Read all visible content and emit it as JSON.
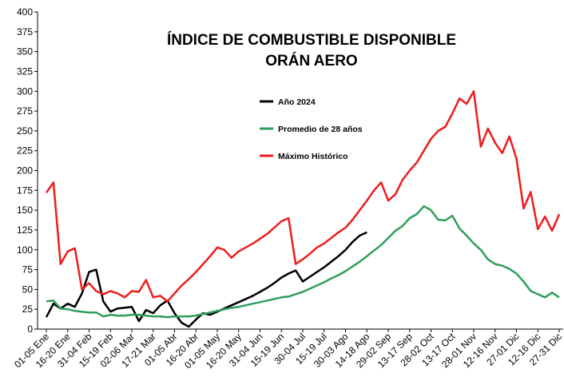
{
  "chart_data": {
    "type": "line",
    "title": [
      "ÍNDICE DE COMBUSTIBLE DISPONIBLE",
      "ORÁN AERO"
    ],
    "categories": [
      "01-05 Ene",
      null,
      null,
      "16-20 Ene",
      null,
      null,
      "31-04 Feb",
      null,
      null,
      "15-19 Feb",
      null,
      null,
      "02-06 Mar",
      null,
      null,
      "17-21 Mar",
      null,
      null,
      "01-05 Abr",
      null,
      null,
      "16-20 Abr",
      null,
      null,
      "01-05 May",
      null,
      null,
      "16-20 May",
      null,
      null,
      "31-04 Jun",
      null,
      null,
      "15-19 Jun",
      null,
      null,
      "30-04 Jul",
      null,
      null,
      "15-19 Jul",
      null,
      null,
      "30-03 Ago",
      null,
      null,
      "14-18 Ago",
      null,
      null,
      "29-02 Sep",
      null,
      null,
      "13-17 Sep",
      null,
      null,
      "28-02 Oct",
      null,
      null,
      "13-17 Oct",
      null,
      null,
      "28-01 Nov",
      null,
      null,
      "12-16 Nov",
      null,
      null,
      "27-01 Dic",
      null,
      null,
      "12-16 Dic",
      null,
      null,
      "27-31 Dic"
    ],
    "series": [
      {
        "name": "Año 2024",
        "color": "#000000",
        "values": [
          15,
          32,
          26,
          32,
          28,
          45,
          72,
          75,
          35,
          22,
          26,
          27,
          28,
          10,
          24,
          20,
          30,
          36,
          20,
          8,
          3,
          12,
          20,
          18,
          22,
          26,
          30,
          34,
          38,
          42,
          47,
          52,
          58,
          65,
          70,
          74,
          60,
          66,
          72,
          78,
          85,
          92,
          100,
          110,
          118,
          122,
          null,
          null,
          null,
          null,
          null,
          null,
          null,
          null,
          null,
          null,
          null,
          null,
          null,
          null,
          null,
          null,
          null,
          null,
          null,
          null,
          null,
          null,
          null,
          null,
          null,
          null,
          null
        ]
      },
      {
        "name": "Promedio de 28 años",
        "color": "#2e9e5b",
        "values": [
          35,
          36,
          26,
          25,
          23,
          22,
          21,
          21,
          16,
          18,
          17,
          17,
          18,
          18,
          17,
          16,
          16,
          15,
          16,
          16,
          16,
          17,
          19,
          21,
          23,
          25,
          27,
          28,
          30,
          32,
          34,
          36,
          38,
          40,
          41,
          44,
          47,
          51,
          55,
          59,
          64,
          68,
          73,
          79,
          85,
          92,
          99,
          106,
          115,
          124,
          130,
          140,
          145,
          155,
          150,
          138,
          137,
          143,
          127,
          118,
          108,
          100,
          88,
          82,
          80,
          76,
          70,
          60,
          48,
          44,
          40,
          46,
          40
        ]
      },
      {
        "name": "Máximo Histórico",
        "color": "#ee1c1c",
        "values": [
          172,
          185,
          82,
          98,
          102,
          50,
          58,
          48,
          44,
          48,
          45,
          40,
          48,
          47,
          62,
          40,
          42,
          35,
          45,
          55,
          63,
          72,
          82,
          92,
          103,
          100,
          90,
          98,
          103,
          108,
          114,
          120,
          128,
          136,
          140,
          82,
          88,
          95,
          103,
          108,
          115,
          122,
          128,
          138,
          150,
          162,
          175,
          185,
          162,
          170,
          188,
          200,
          210,
          225,
          240,
          250,
          255,
          272,
          291,
          284,
          300,
          230,
          253,
          235,
          222,
          243,
          215,
          152,
          173,
          126,
          142,
          124,
          145
        ]
      }
    ],
    "ylim": [
      0,
      400
    ],
    "yticks": [
      0,
      25,
      50,
      75,
      100,
      125,
      150,
      175,
      200,
      225,
      250,
      275,
      300,
      325,
      350,
      375,
      400
    ],
    "grid": false
  }
}
